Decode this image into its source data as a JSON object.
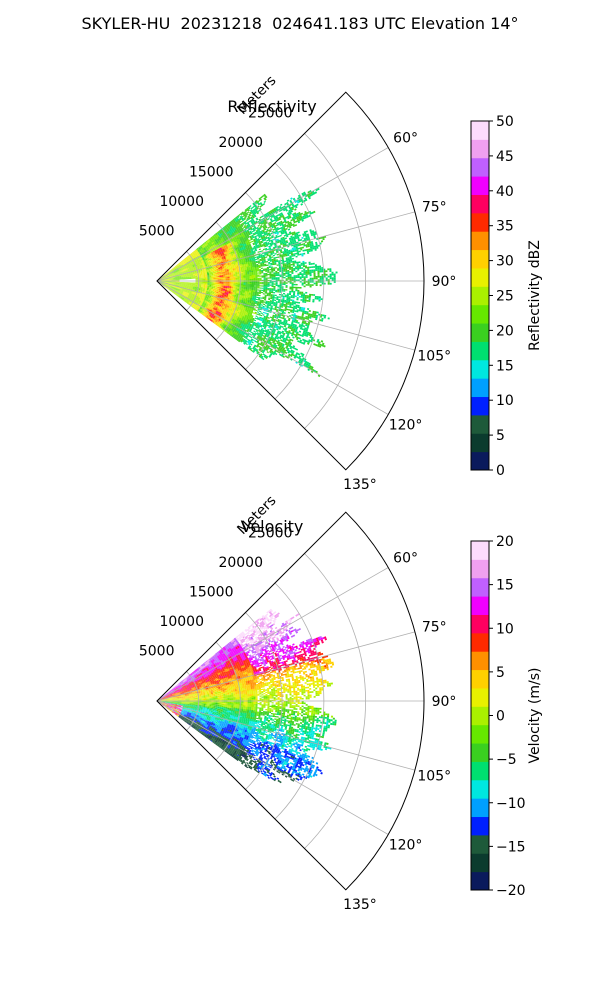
{
  "figure": {
    "title": "SKYLER-HU  20231218  024641.183 UTC Elevation 14°"
  },
  "chart_data": [
    {
      "type": "heatmap",
      "subtype": "polar-sector-ppi",
      "title": "Reflectivity",
      "radial_label": "Meters",
      "radial_ticks": [
        5000,
        10000,
        15000,
        20000,
        25000
      ],
      "radial_tick_labels": [
        "5000",
        "10000",
        "15000",
        "20000",
        "25000"
      ],
      "angle_ticks": [
        60,
        75,
        90,
        105,
        120,
        135
      ],
      "angle_tick_labels": [
        "60°",
        "75°",
        "90°",
        "105°",
        "120°",
        "135°"
      ],
      "theta_range": [
        45,
        135
      ],
      "r_range": [
        0,
        32000
      ],
      "grid": true,
      "colorbar": {
        "label": "Reflectivity dBZ",
        "range": [
          0,
          50
        ],
        "ticks": [
          0,
          5,
          10,
          15,
          20,
          25,
          30,
          35,
          40,
          45,
          50
        ],
        "tick_labels": [
          "0",
          "5",
          "10",
          "15",
          "20",
          "25",
          "30",
          "35",
          "40",
          "45",
          "50"
        ],
        "colors": [
          "#0a1a5c",
          "#0b3b2e",
          "#1e5a3a",
          "#0020ff",
          "#00a0ff",
          "#00e8e0",
          "#00e070",
          "#3ad020",
          "#66e800",
          "#aaf000",
          "#e8f000",
          "#ffd000",
          "#ff9000",
          "#ff2a00",
          "#ff0060",
          "#f000ff",
          "#c060ff",
          "#f0a0f0",
          "#fcdcfc"
        ]
      },
      "echo_extent_m": {
        "min_angle": 51,
        "max_angle": 126,
        "max_range": 22500
      },
      "features": [
        {
          "description_value": "strong echo band (>=35 dBZ)",
          "range_m": [
            6000,
            10000
          ],
          "angle_deg": [
            64,
            124
          ]
        }
      ]
    },
    {
      "type": "heatmap",
      "subtype": "polar-sector-ppi",
      "title": "Velocity",
      "radial_label": "Meters",
      "radial_ticks": [
        5000,
        10000,
        15000,
        20000,
        25000
      ],
      "radial_tick_labels": [
        "5000",
        "10000",
        "15000",
        "20000",
        "25000"
      ],
      "angle_ticks": [
        60,
        75,
        90,
        105,
        120,
        135
      ],
      "angle_tick_labels": [
        "60°",
        "75°",
        "90°",
        "105°",
        "120°",
        "135°"
      ],
      "theta_range": [
        45,
        135
      ],
      "r_range": [
        0,
        32000
      ],
      "grid": true,
      "colorbar": {
        "label": "Velocity (m/s)",
        "range": [
          -20,
          20
        ],
        "ticks": [
          -20,
          -15,
          -10,
          -5,
          0,
          5,
          10,
          15,
          20
        ],
        "tick_labels": [
          "−20",
          "−15",
          "−10",
          "−5",
          "0",
          "5",
          "10",
          "15",
          "20"
        ],
        "colors": [
          "#0a1a5c",
          "#0b3b2e",
          "#1e5a3a",
          "#0020ff",
          "#00a0ff",
          "#00e8e0",
          "#00e070",
          "#3ad020",
          "#66e800",
          "#aaf000",
          "#e8f000",
          "#ffd000",
          "#ff9000",
          "#ff2a00",
          "#ff0060",
          "#f000ff",
          "#c060ff",
          "#f0a0f0",
          "#fcdcfc"
        ]
      },
      "echo_extent_m": {
        "min_angle": 51,
        "max_angle": 126,
        "max_range": 22500
      },
      "features": [
        {
          "description_value": "receding (positive) velocities",
          "angle_deg": [
            51,
            85
          ]
        },
        {
          "description_value": "approaching (negative) velocities",
          "angle_deg": [
            95,
            126
          ]
        }
      ]
    }
  ]
}
